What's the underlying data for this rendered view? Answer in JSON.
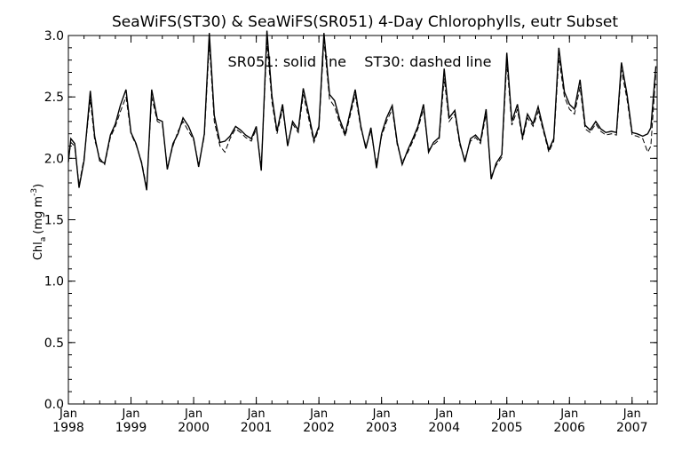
{
  "chart_data": {
    "type": "line",
    "title": "SeaWiFS(ST30) & SeaWiFS(SR051) 4-Day Chlorophylls, eutr Subset",
    "annotation": "SR051: solid line    ST30: dashed line",
    "xlabel": "",
    "ylabel": "Chl",
    "ylabel_subscript": "a",
    "ylabel_units_prefix": "(mg m",
    "ylabel_units_sup": "-3",
    "ylabel_units_suffix": ")",
    "xlim": [
      1998.0,
      2007.4
    ],
    "ylim": [
      0.0,
      3.0
    ],
    "y_ticks": [
      0.0,
      0.5,
      1.0,
      1.5,
      2.0,
      2.5,
      3.0
    ],
    "y_tick_labels": [
      "0.0",
      "0.5",
      "1.0",
      "1.5",
      "2.0",
      "2.5",
      "3.0"
    ],
    "x_ticks": [
      1998,
      1999,
      2000,
      2001,
      2002,
      2003,
      2004,
      2005,
      2006,
      2007
    ],
    "x_tick_month_label": "Jan",
    "x_tick_year_labels": [
      "1998",
      "1999",
      "2000",
      "2001",
      "2002",
      "2003",
      "2004",
      "2005",
      "2006",
      "2007"
    ],
    "grid": false,
    "line_color": "#000000",
    "series": [
      {
        "style": "solid",
        "x": [
          1998.0,
          1998.04,
          1998.1,
          1998.17,
          1998.25,
          1998.35,
          1998.42,
          1998.5,
          1998.58,
          1998.67,
          1998.75,
          1998.83,
          1998.92,
          1999.0,
          1999.08,
          1999.17,
          1999.25,
          1999.33,
          1999.42,
          1999.5,
          1999.58,
          1999.67,
          1999.75,
          1999.83,
          1999.92,
          2000.0,
          2000.08,
          2000.17,
          2000.25,
          2000.33,
          2000.42,
          2000.5,
          2000.58,
          2000.67,
          2000.75,
          2000.83,
          2000.92,
          2001.0,
          2001.08,
          2001.17,
          2001.25,
          2001.33,
          2001.42,
          2001.5,
          2001.58,
          2001.67,
          2001.75,
          2001.83,
          2001.92,
          2002.0,
          2002.08,
          2002.17,
          2002.25,
          2002.33,
          2002.42,
          2002.5,
          2002.58,
          2002.67,
          2002.75,
          2002.83,
          2002.92,
          2003.0,
          2003.08,
          2003.17,
          2003.25,
          2003.33,
          2003.42,
          2003.5,
          2003.58,
          2003.67,
          2003.75,
          2003.83,
          2003.92,
          2004.0,
          2004.08,
          2004.17,
          2004.25,
          2004.33,
          2004.42,
          2004.5,
          2004.58,
          2004.67,
          2004.75,
          2004.83,
          2004.92,
          2005.0,
          2005.08,
          2005.17,
          2005.25,
          2005.33,
          2005.42,
          2005.5,
          2005.58,
          2005.67,
          2005.75,
          2005.83,
          2005.92,
          2006.0,
          2006.08,
          2006.17,
          2006.25,
          2006.33,
          2006.42,
          2006.5,
          2006.58,
          2006.67,
          2006.75,
          2006.83,
          2006.92,
          2007.0,
          2007.08,
          2007.17,
          2007.25,
          2007.3,
          2007.38
        ],
        "values": [
          1.97,
          2.16,
          2.12,
          1.76,
          1.98,
          2.55,
          2.18,
          1.98,
          1.96,
          2.19,
          2.28,
          2.43,
          2.56,
          2.21,
          2.12,
          1.96,
          1.74,
          2.56,
          2.32,
          2.3,
          1.91,
          2.12,
          2.2,
          2.33,
          2.26,
          2.16,
          1.93,
          2.2,
          3.02,
          2.35,
          2.13,
          2.14,
          2.18,
          2.26,
          2.23,
          2.19,
          2.16,
          2.26,
          1.9,
          3.04,
          2.51,
          2.22,
          2.44,
          2.1,
          2.3,
          2.23,
          2.57,
          2.38,
          2.15,
          2.26,
          3.02,
          2.52,
          2.47,
          2.32,
          2.2,
          2.38,
          2.56,
          2.26,
          2.08,
          2.25,
          1.92,
          2.2,
          2.33,
          2.43,
          2.13,
          1.95,
          2.07,
          2.16,
          2.26,
          2.44,
          2.05,
          2.13,
          2.17,
          2.73,
          2.33,
          2.39,
          2.13,
          1.97,
          2.16,
          2.19,
          2.14,
          2.4,
          1.83,
          1.96,
          2.03,
          2.86,
          2.3,
          2.44,
          2.17,
          2.36,
          2.28,
          2.42,
          2.25,
          2.07,
          2.16,
          2.9,
          2.54,
          2.44,
          2.4,
          2.64,
          2.27,
          2.23,
          2.3,
          2.24,
          2.21,
          2.22,
          2.21,
          2.78,
          2.52,
          2.21,
          2.2,
          2.18,
          2.2,
          2.25,
          2.75
        ]
      },
      {
        "style": "dashed",
        "x": [
          1998.0,
          1998.04,
          1998.1,
          1998.17,
          1998.25,
          1998.35,
          1998.42,
          1998.5,
          1998.58,
          1998.67,
          1998.75,
          1998.83,
          1998.92,
          1999.0,
          1999.08,
          1999.17,
          1999.25,
          1999.33,
          1999.42,
          1999.5,
          1999.58,
          1999.67,
          1999.75,
          1999.83,
          1999.92,
          2000.0,
          2000.08,
          2000.17,
          2000.25,
          2000.33,
          2000.42,
          2000.5,
          2000.58,
          2000.67,
          2000.75,
          2000.83,
          2000.92,
          2001.0,
          2001.08,
          2001.17,
          2001.25,
          2001.33,
          2001.42,
          2001.5,
          2001.58,
          2001.67,
          2001.75,
          2001.83,
          2001.92,
          2002.0,
          2002.08,
          2002.17,
          2002.25,
          2002.33,
          2002.42,
          2002.5,
          2002.58,
          2002.67,
          2002.75,
          2002.83,
          2002.92,
          2003.0,
          2003.08,
          2003.17,
          2003.25,
          2003.33,
          2003.42,
          2003.5,
          2003.58,
          2003.67,
          2003.75,
          2003.83,
          2003.92,
          2004.0,
          2004.08,
          2004.17,
          2004.25,
          2004.33,
          2004.42,
          2004.5,
          2004.58,
          2004.67,
          2004.75,
          2004.83,
          2004.92,
          2005.0,
          2005.08,
          2005.17,
          2005.25,
          2005.33,
          2005.42,
          2005.5,
          2005.58,
          2005.67,
          2005.75,
          2005.83,
          2005.92,
          2006.0,
          2006.08,
          2006.17,
          2006.25,
          2006.33,
          2006.42,
          2006.5,
          2006.58,
          2006.67,
          2006.75,
          2006.83,
          2006.92,
          2007.0,
          2007.08,
          2007.17,
          2007.25,
          2007.3,
          2007.38
        ],
        "values": [
          1.99,
          2.13,
          2.1,
          1.78,
          2.0,
          2.48,
          2.15,
          2.0,
          1.95,
          2.17,
          2.26,
          2.38,
          2.5,
          2.2,
          2.11,
          1.97,
          1.76,
          2.5,
          2.3,
          2.28,
          1.93,
          2.1,
          2.22,
          2.3,
          2.22,
          2.15,
          1.95,
          2.18,
          2.94,
          2.3,
          2.1,
          2.05,
          2.16,
          2.24,
          2.21,
          2.17,
          2.14,
          2.24,
          1.93,
          2.95,
          2.46,
          2.2,
          2.4,
          2.12,
          2.28,
          2.21,
          2.52,
          2.34,
          2.13,
          2.24,
          2.96,
          2.48,
          2.42,
          2.29,
          2.18,
          2.35,
          2.52,
          2.24,
          2.1,
          2.22,
          1.95,
          2.18,
          2.3,
          2.4,
          2.11,
          1.97,
          2.05,
          2.14,
          2.24,
          2.4,
          2.07,
          2.11,
          2.15,
          2.65,
          2.3,
          2.36,
          2.11,
          1.99,
          2.14,
          2.17,
          2.12,
          2.36,
          1.85,
          1.94,
          2.01,
          2.78,
          2.27,
          2.4,
          2.15,
          2.33,
          2.26,
          2.38,
          2.23,
          2.05,
          2.14,
          2.82,
          2.5,
          2.4,
          2.36,
          2.58,
          2.24,
          2.21,
          2.28,
          2.22,
          2.19,
          2.2,
          2.19,
          2.72,
          2.48,
          2.19,
          2.18,
          2.16,
          2.05,
          2.1,
          2.7
        ]
      }
    ]
  }
}
